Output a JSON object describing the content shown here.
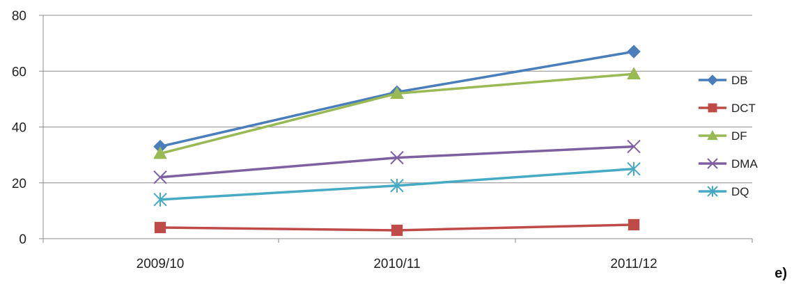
{
  "chart_data": {
    "type": "line",
    "title": "",
    "xlabel": "",
    "ylabel": "",
    "categories": [
      "2009/10",
      "2010/11",
      "2011/12"
    ],
    "ylim": [
      0,
      80
    ],
    "yticks": [
      0,
      20,
      40,
      60,
      80
    ],
    "grid": true,
    "legend_position": "right",
    "series": [
      {
        "name": "DB",
        "values": [
          33,
          52.5,
          67
        ],
        "color": "#4a7ebb",
        "marker": "diamond"
      },
      {
        "name": "DCT",
        "values": [
          4,
          3,
          5
        ],
        "color": "#be4b48",
        "marker": "square"
      },
      {
        "name": "DF",
        "values": [
          30.5,
          52,
          59
        ],
        "color": "#98b954",
        "marker": "triangle"
      },
      {
        "name": "DMA",
        "values": [
          22,
          29,
          33
        ],
        "color": "#7d60a0",
        "marker": "x"
      },
      {
        "name": "DQ",
        "values": [
          14,
          19,
          25
        ],
        "color": "#46aac5",
        "marker": "star"
      }
    ]
  },
  "panel_label": "e)"
}
